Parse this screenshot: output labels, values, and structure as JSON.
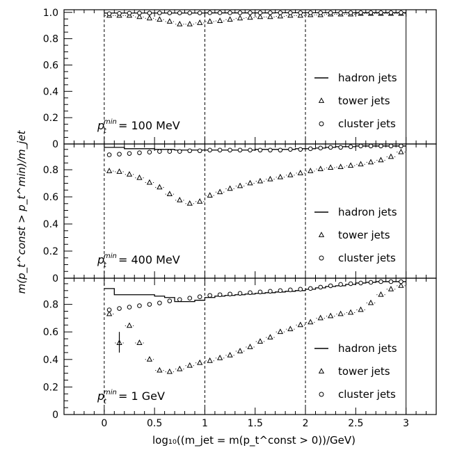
{
  "chart_data": {
    "type": "line",
    "xlabel": "log₁₀((m_jet = m(p_t^const > 0))/GeV)",
    "ylabel": "m(p_t^const > p_t^min)/m_jet",
    "xlim": [
      -0.4,
      3.3
    ],
    "x_ticks": [
      "0",
      "0.5",
      "1",
      "1.5",
      "2",
      "2.5",
      "3"
    ],
    "dashed_x": [
      0,
      1,
      2
    ],
    "bin_edges": [
      0,
      0.1,
      0.2,
      0.3,
      0.4,
      0.5,
      0.6,
      0.7,
      0.8,
      0.9,
      1.0,
      1.1,
      1.2,
      1.3,
      1.4,
      1.5,
      1.6,
      1.7,
      1.8,
      1.9,
      2.0,
      2.1,
      2.2,
      2.3,
      2.4,
      2.5,
      2.6,
      2.7,
      2.8,
      2.9,
      3.0
    ],
    "marker_x": [
      0.05,
      0.15,
      0.25,
      0.35,
      0.45,
      0.55,
      0.65,
      0.75,
      0.85,
      0.95,
      1.05,
      1.15,
      1.25,
      1.35,
      1.45,
      1.55,
      1.65,
      1.75,
      1.85,
      1.95,
      2.05,
      2.15,
      2.25,
      2.35,
      2.45,
      2.55,
      2.65,
      2.75,
      2.85,
      2.95
    ],
    "panels": [
      {
        "label_main": "p",
        "label_sub": "t",
        "label_sup": "min",
        "label_value": " = 100 MeV",
        "ylim": [
          0,
          1.02
        ],
        "y_ticks": [
          "0",
          "0.2",
          "0.4",
          "0.6",
          "0.8",
          "1.0"
        ],
        "y_tick_values": [
          0,
          0.2,
          0.4,
          0.6,
          0.8,
          1.0
        ],
        "legend": [
          "hadron jets",
          "tower jets",
          "cluster jets"
        ],
        "series": [
          {
            "name": "hadron jets",
            "values": [
              0.995,
              0.995,
              0.995,
              0.995,
              0.995,
              0.995,
              0.995,
              0.995,
              0.995,
              0.995,
              0.996,
              0.996,
              0.996,
              0.996,
              0.996,
              0.996,
              0.996,
              0.997,
              0.997,
              0.997,
              0.997,
              0.997,
              0.997,
              0.997,
              0.997,
              0.998,
              0.998,
              0.998,
              0.998,
              0.998
            ]
          },
          {
            "name": "tower jets",
            "values": [
              0.975,
              0.975,
              0.975,
              0.965,
              0.955,
              0.945,
              0.93,
              0.91,
              0.91,
              0.92,
              0.93,
              0.935,
              0.945,
              0.955,
              0.96,
              0.965,
              0.965,
              0.97,
              0.975,
              0.975,
              0.98,
              0.98,
              0.985,
              0.985,
              0.985,
              0.99,
              0.99,
              0.99,
              0.99,
              0.99
            ]
          },
          {
            "name": "cluster jets",
            "values": [
              0.99,
              0.992,
              0.994,
              0.995,
              0.995,
              0.996,
              0.996,
              0.996,
              0.996,
              0.996,
              0.997,
              0.997,
              0.997,
              0.997,
              0.997,
              0.997,
              0.997,
              0.997,
              0.997,
              0.997,
              0.997,
              0.997,
              0.997,
              0.997,
              0.997,
              0.998,
              0.998,
              0.998,
              0.998,
              0.998
            ]
          }
        ]
      },
      {
        "label_main": "p",
        "label_sub": "t",
        "label_sup": "min",
        "label_value": " = 400 MeV",
        "ylim": [
          0,
          0.99
        ],
        "y_ticks": [
          "0",
          "0.2",
          "0.4",
          "0.6",
          "0.8"
        ],
        "y_tick_values": [
          0,
          0.2,
          0.4,
          0.6,
          0.8
        ],
        "legend": [
          "hadron jets",
          "tower jets",
          "cluster jets"
        ],
        "series": [
          {
            "name": "hadron jets",
            "values": [
              0.965,
              0.965,
              0.955,
              0.955,
              0.955,
              0.95,
              0.95,
              0.945,
              0.945,
              0.945,
              0.945,
              0.945,
              0.945,
              0.945,
              0.945,
              0.95,
              0.95,
              0.95,
              0.95,
              0.955,
              0.955,
              0.96,
              0.965,
              0.97,
              0.97,
              0.975,
              0.975,
              0.975,
              0.975,
              0.975
            ]
          },
          {
            "name": "tower jets",
            "values": [
              0.79,
              0.785,
              0.765,
              0.74,
              0.705,
              0.67,
              0.62,
              0.575,
              0.55,
              0.565,
              0.61,
              0.635,
              0.66,
              0.68,
              0.7,
              0.715,
              0.73,
              0.745,
              0.76,
              0.775,
              0.79,
              0.805,
              0.815,
              0.82,
              0.83,
              0.84,
              0.855,
              0.87,
              0.895,
              0.93
            ]
          },
          {
            "name": "cluster jets",
            "values": [
              0.91,
              0.915,
              0.92,
              0.925,
              0.93,
              0.935,
              0.935,
              0.935,
              0.94,
              0.94,
              0.945,
              0.945,
              0.945,
              0.945,
              0.945,
              0.945,
              0.945,
              0.945,
              0.95,
              0.95,
              0.955,
              0.96,
              0.965,
              0.965,
              0.97,
              0.975,
              0.975,
              0.975,
              0.975,
              0.975
            ]
          }
        ]
      },
      {
        "label_main": "p",
        "label_sub": "t",
        "label_sup": "min",
        "label_value": " = 1 GeV",
        "ylim": [
          0,
          0.99
        ],
        "y_ticks": [
          "0",
          "0.2",
          "0.4",
          "0.6",
          "0.8"
        ],
        "y_tick_values": [
          0,
          0.2,
          0.4,
          0.6,
          0.8
        ],
        "legend": [
          "hadron jets",
          "tower jets",
          "cluster jets"
        ],
        "series": [
          {
            "name": "hadron jets",
            "values": [
              0.915,
              0.87,
              0.87,
              0.87,
              0.87,
              0.86,
              0.85,
              0.82,
              0.82,
              0.83,
              0.85,
              0.86,
              0.865,
              0.87,
              0.875,
              0.88,
              0.885,
              0.89,
              0.895,
              0.9,
              0.91,
              0.92,
              0.93,
              0.935,
              0.945,
              0.955,
              0.96,
              0.965,
              0.965,
              0.965
            ]
          },
          {
            "name": "tower jets",
            "values": [
              0.73,
              0.52,
              0.645,
              0.52,
              0.4,
              0.32,
              0.31,
              0.33,
              0.355,
              0.375,
              0.39,
              0.41,
              0.43,
              0.46,
              0.49,
              0.53,
              0.56,
              0.6,
              0.62,
              0.65,
              0.67,
              0.7,
              0.715,
              0.73,
              0.74,
              0.76,
              0.81,
              0.87,
              0.91,
              0.935
            ]
          },
          {
            "name": "cluster jets",
            "values": [
              0.76,
              0.77,
              0.78,
              0.79,
              0.8,
              0.81,
              0.825,
              0.835,
              0.845,
              0.855,
              0.865,
              0.87,
              0.875,
              0.88,
              0.885,
              0.89,
              0.895,
              0.9,
              0.905,
              0.91,
              0.915,
              0.925,
              0.935,
              0.945,
              0.95,
              0.955,
              0.96,
              0.965,
              0.965,
              0.965
            ]
          }
        ],
        "error_bar": {
          "x": 0.15,
          "low": 0.45,
          "high": 0.6
        }
      }
    ]
  }
}
